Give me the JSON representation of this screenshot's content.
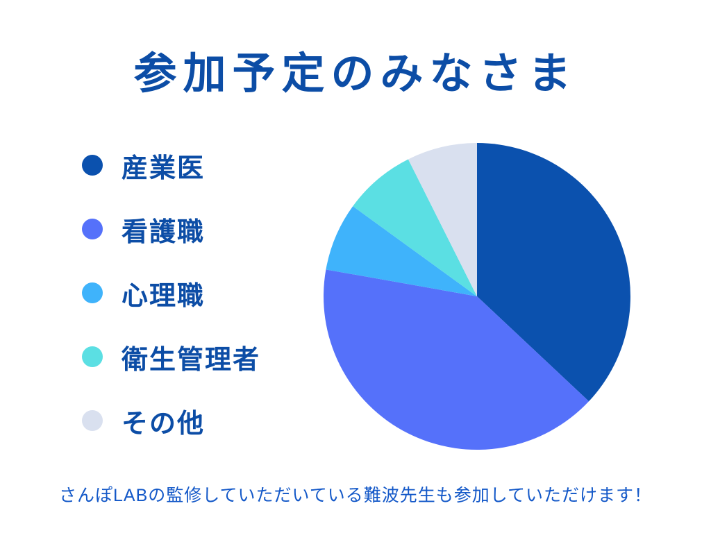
{
  "slide": {
    "title": "参加予定のみなさま",
    "background_color": "#ffffff",
    "title_color": "#0C4DA6"
  },
  "footer": {
    "note": "さんぽLABの監修していただいている難波先生も参加していただけます！",
    "color": "#1358C8"
  },
  "legend": {
    "position": "left",
    "label_color": "#0C4DA6"
  },
  "chart_data": {
    "type": "pie",
    "title": "参加予定のみなさま",
    "labels": [
      "産業医",
      "看護職",
      "心理職",
      "衛生管理者",
      "その他"
    ],
    "values": [
      37,
      40.8,
      7.2,
      7.6,
      7.4
    ],
    "unit": "percent",
    "values_estimated_from_angles": true,
    "slice_boundary_angles_deg": [
      0,
      133.2,
      280.1,
      306.0,
      333.4,
      360
    ],
    "colors": [
      "#0B51AE",
      "#5571FA",
      "#3FB3FB",
      "#5BDFE3",
      "#D9E0EF"
    ],
    "start_angle_deg": 0,
    "direction": "clockwise",
    "legend_position": "left",
    "data_labels_shown": false
  }
}
